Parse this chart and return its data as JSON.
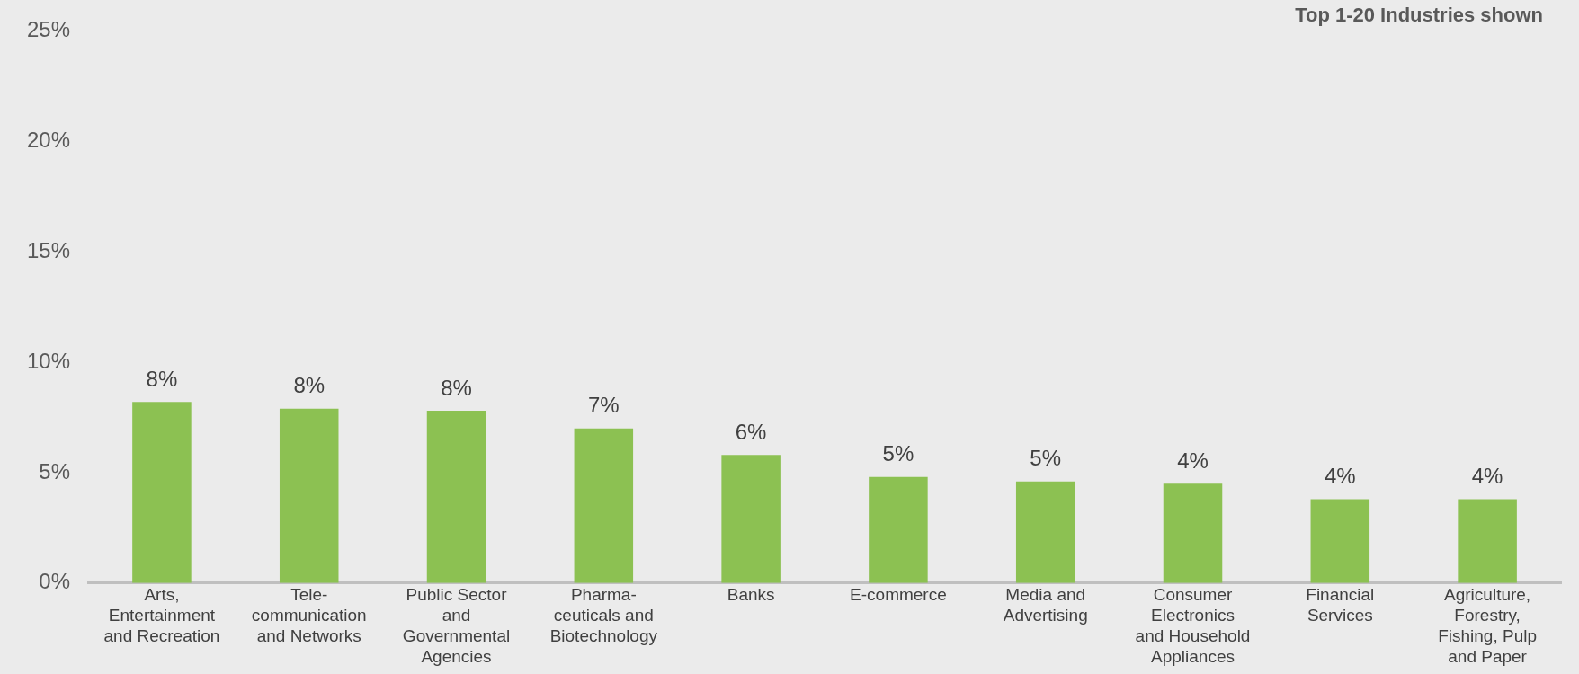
{
  "chart_data": {
    "type": "bar",
    "title": "Top 1-20 Industries shown",
    "categories": [
      "Arts, Entertainment and Recreation",
      "Tele-communication and Networks",
      "Public Sector and Governmental Agencies",
      "Pharma-ceuticals and Biotechnology",
      "Banks",
      "E-commerce",
      "Media and Advertising",
      "Consumer Electronics and Household Appliances",
      "Financial Services",
      "Agriculture, Forestry, Fishing, Pulp and Paper"
    ],
    "values": [
      8.2,
      7.9,
      7.8,
      7.0,
      5.8,
      4.8,
      4.6,
      4.5,
      3.8,
      3.8
    ],
    "value_labels": [
      "8%",
      "8%",
      "8%",
      "7%",
      "6%",
      "5%",
      "5%",
      "4%",
      "4%",
      "4%"
    ],
    "color": "#8cc152",
    "ylim": [
      0,
      25
    ],
    "yticks": [
      {
        "value": 0,
        "label": "0%"
      },
      {
        "value": 5,
        "label": "5%"
      },
      {
        "value": 10,
        "label": "10%"
      },
      {
        "value": 15,
        "label": "15%"
      },
      {
        "value": 20,
        "label": "20%"
      },
      {
        "value": 25,
        "label": "25%"
      }
    ],
    "grid": false,
    "legend": false
  }
}
